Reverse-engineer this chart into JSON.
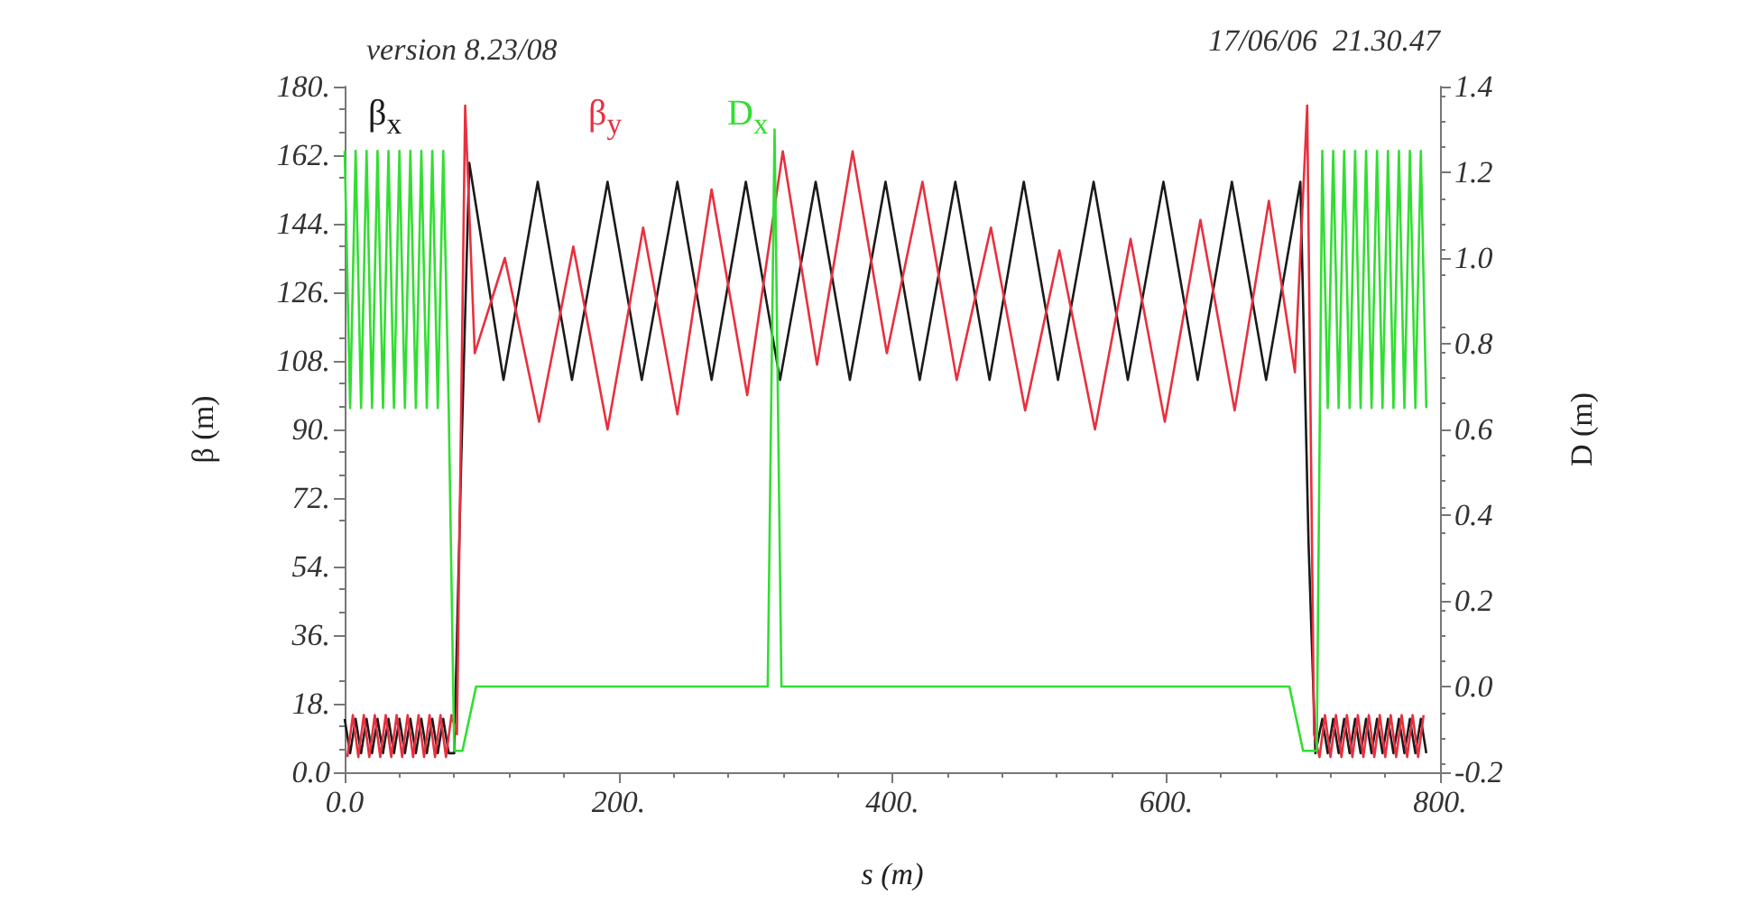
{
  "chart_data": {
    "type": "line",
    "title": "version 8.23/08",
    "annotations": [
      "17/06/06  21.30.47"
    ],
    "xlabel": "s (m)",
    "ylabel": "β (m)",
    "y2label": "D (m)",
    "xlim": [
      0,
      800
    ],
    "xticks": [
      {
        "value": 0,
        "label": "0.0"
      },
      {
        "value": 200,
        "label": "200."
      },
      {
        "value": 400,
        "label": "400."
      },
      {
        "value": 600,
        "label": "600."
      },
      {
        "value": 800,
        "label": "800."
      }
    ],
    "ylim": [
      0,
      180
    ],
    "yticks": [
      {
        "value": 0,
        "label": "0.0"
      },
      {
        "value": 18,
        "label": "18."
      },
      {
        "value": 36,
        "label": "36."
      },
      {
        "value": 54,
        "label": "54."
      },
      {
        "value": 72,
        "label": "72."
      },
      {
        "value": 90,
        "label": "90."
      },
      {
        "value": 108,
        "label": "108."
      },
      {
        "value": 126,
        "label": "126."
      },
      {
        "value": 144,
        "label": "144."
      },
      {
        "value": 162,
        "label": "162."
      },
      {
        "value": 180,
        "label": "180."
      }
    ],
    "y2lim": [
      -0.2,
      1.4
    ],
    "y2ticks": [
      {
        "value": -0.2,
        "label": "-0.2"
      },
      {
        "value": 0,
        "label": "0.0"
      },
      {
        "value": 0.2,
        "label": "0.2"
      },
      {
        "value": 0.4,
        "label": "0.4"
      },
      {
        "value": 0.6,
        "label": "0.6"
      },
      {
        "value": 0.8,
        "label": "0.8"
      },
      {
        "value": 1.0,
        "label": "1.0"
      },
      {
        "value": 1.2,
        "label": "1.2"
      },
      {
        "value": 1.4,
        "label": "1.4"
      }
    ],
    "grid": false,
    "marker": "none",
    "line_style": "solid",
    "series": [
      {
        "name": "β$_{x}$",
        "color": "#1a1a1a",
        "x": [
          0,
          4,
          8,
          12,
          16,
          20,
          24,
          28,
          32,
          36,
          40,
          44,
          48,
          52,
          56,
          60,
          64,
          68,
          72,
          76,
          80,
          85,
          91,
          116,
          141,
          166,
          192,
          217,
          243,
          268,
          293,
          318,
          344,
          369,
          395,
          420,
          446,
          471,
          496,
          521,
          547,
          572,
          598,
          623,
          648,
          673,
          698,
          704,
          709,
          714,
          718,
          722,
          726,
          730,
          734,
          738,
          742,
          746,
          750,
          754,
          758,
          762,
          766,
          770,
          774,
          778,
          782,
          786,
          790
        ],
        "values": [
          14,
          5,
          14,
          5,
          14,
          5,
          14,
          5,
          14,
          5,
          14,
          5,
          14,
          5,
          14,
          5,
          14,
          5,
          14,
          5,
          5,
          80,
          160,
          103,
          155,
          103,
          155,
          103,
          155,
          103,
          155,
          103,
          155,
          103,
          155,
          103,
          155,
          103,
          155,
          103,
          155,
          103,
          155,
          103,
          155,
          103,
          155,
          60,
          5,
          14,
          5,
          14,
          5,
          14,
          5,
          14,
          5,
          14,
          5,
          14,
          5,
          14,
          5,
          14,
          5,
          14,
          5,
          14,
          5
        ]
      },
      {
        "name": "β$_{y}$",
        "color": "#e8303f",
        "x": [
          2,
          6,
          10,
          14,
          18,
          22,
          26,
          30,
          34,
          38,
          42,
          46,
          50,
          54,
          58,
          62,
          66,
          70,
          74,
          78,
          82,
          88,
          95,
          117,
          142,
          167,
          192,
          218,
          243,
          268,
          294,
          320,
          345,
          371,
          396,
          422,
          447,
          472,
          497,
          522,
          548,
          574,
          599,
          625,
          650,
          675,
          694,
          703,
          708,
          712,
          716,
          720,
          724,
          728,
          732,
          736,
          740,
          744,
          748,
          752,
          756,
          760,
          764,
          768,
          772,
          776,
          780,
          784,
          788
        ],
        "values": [
          4,
          15,
          4,
          15,
          4,
          15,
          4,
          15,
          4,
          15,
          4,
          15,
          4,
          15,
          4,
          15,
          4,
          15,
          4,
          15,
          10,
          175,
          110,
          135,
          92,
          138,
          90,
          143,
          94,
          153,
          99,
          163,
          107,
          163,
          110,
          155,
          103,
          143,
          95,
          137,
          90,
          140,
          92,
          145,
          95,
          150,
          105,
          175,
          10,
          4,
          15,
          4,
          15,
          4,
          15,
          4,
          15,
          4,
          15,
          4,
          15,
          4,
          15,
          4,
          15,
          4,
          15,
          4,
          15
        ]
      },
      {
        "name": "D$_{x}$",
        "color": "#33dd33",
        "axis": "y2",
        "x": [
          0,
          4,
          8,
          12,
          16,
          20,
          24,
          28,
          32,
          36,
          40,
          44,
          48,
          52,
          56,
          60,
          64,
          68,
          72,
          76,
          80,
          86,
          96,
          309,
          314,
          319,
          690,
          700,
          710,
          714,
          718,
          722,
          726,
          730,
          734,
          738,
          742,
          746,
          750,
          754,
          758,
          762,
          766,
          770,
          774,
          778,
          782,
          786,
          790
        ],
        "values": [
          1.25,
          0.65,
          1.25,
          0.65,
          1.25,
          0.65,
          1.25,
          0.65,
          1.25,
          0.65,
          1.25,
          0.65,
          1.25,
          0.65,
          1.25,
          0.65,
          1.25,
          0.65,
          1.25,
          0.65,
          -0.15,
          -0.15,
          0.0,
          0.0,
          1.3,
          0.0,
          0.0,
          -0.15,
          -0.15,
          1.25,
          0.65,
          1.25,
          0.65,
          1.25,
          0.65,
          1.25,
          0.65,
          1.25,
          0.65,
          1.25,
          0.65,
          1.25,
          0.65,
          1.25,
          0.65,
          1.25,
          0.65,
          1.25,
          0.65
        ]
      }
    ]
  }
}
